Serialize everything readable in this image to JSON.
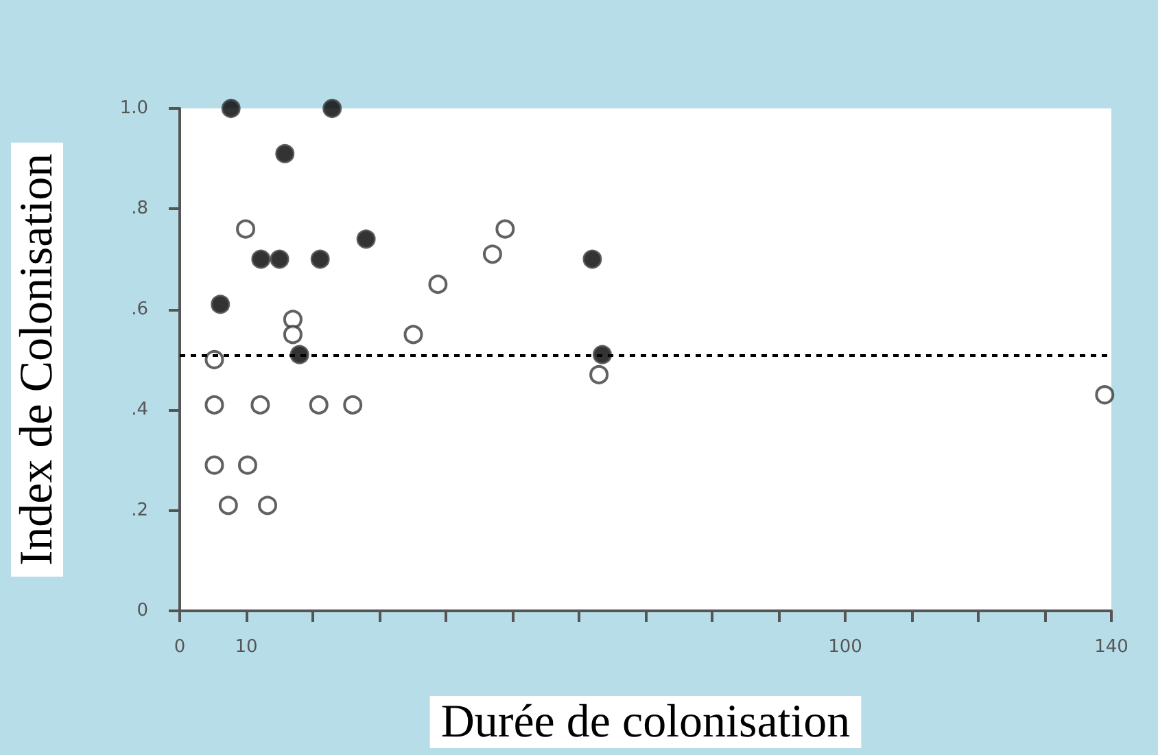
{
  "chart_data": {
    "type": "scatter",
    "xlabel": "Durée de colonisation",
    "ylabel": "Index de Colonisation",
    "xlim": [
      0,
      140
    ],
    "xticks": [
      0,
      10,
      {
        "value": 20,
        "label": null
      },
      {
        "value": 30,
        "label": null
      },
      {
        "value": 40,
        "label": null
      },
      {
        "value": 50,
        "label": null
      },
      {
        "value": 60,
        "label": null
      },
      {
        "value": 70,
        "label": null
      },
      {
        "value": 80,
        "label": null
      },
      {
        "value": 90,
        "label": null
      },
      100,
      {
        "value": 110,
        "label": null
      },
      {
        "value": 120,
        "label": null
      },
      {
        "value": 130,
        "label": null
      },
      140
    ],
    "ylim": [
      0,
      1.0
    ],
    "yticks": [
      0,
      {
        "value": 0.2,
        "label": ".2"
      },
      {
        "value": 0.4,
        "label": ".4"
      },
      {
        "value": 0.6,
        "label": ".6"
      },
      {
        "value": 0.8,
        "label": ".8"
      },
      {
        "value": 1.0,
        "label": "1.0"
      }
    ],
    "marker": "circle",
    "grid": false,
    "series": [
      {
        "color": "#000000",
        "x": [
          7.7,
          22.9,
          15.8,
          12.2,
          15.0,
          21.1,
          28.0,
          6.1,
          18.0,
          62,
          63.5
        ],
        "values": [
          1.0,
          1.0,
          0.91,
          0.7,
          0.7,
          0.7,
          0.74,
          0.61,
          0.51,
          0.7,
          0.51
        ]
      },
      {
        "color": "#ffffff",
        "x": [
          5.2,
          5.2,
          5.2,
          7.3,
          9.9,
          10.2,
          12.1,
          13.2,
          17.0,
          17.0,
          20.9,
          26.0,
          35.1,
          38.8,
          47.0,
          48.9,
          63,
          139
        ],
        "values": [
          0.5,
          0.41,
          0.29,
          0.21,
          0.76,
          0.29,
          0.41,
          0.21,
          0.58,
          0.55,
          0.41,
          0.41,
          0.55,
          0.65,
          0.71,
          0.76,
          0.47,
          0.43
        ]
      }
    ],
    "ref_lines": [
      {
        "axis": "y",
        "value": 0.51,
        "line_style": "dashed",
        "color": "#000000"
      }
    ]
  }
}
